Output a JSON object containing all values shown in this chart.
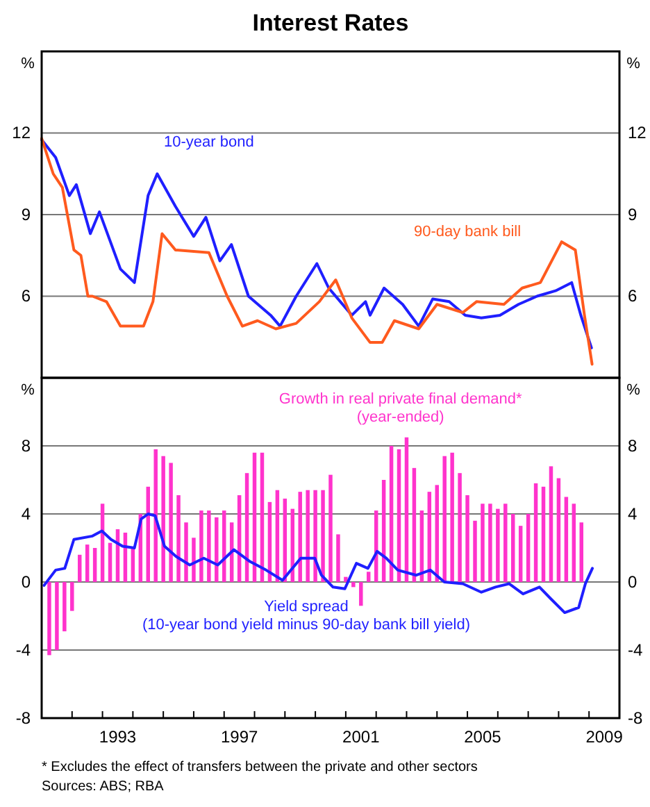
{
  "chart_data": [
    {
      "type": "line",
      "title": "Interest Rates",
      "ylabel": "%",
      "y2label": "%",
      "xlim": [
        1991,
        2010
      ],
      "ylim": [
        3,
        15
      ],
      "yticks": [
        6,
        9,
        12
      ],
      "y2lim": [
        3,
        15
      ],
      "y2ticks": [
        6,
        9,
        12
      ],
      "grid": "y",
      "tick_labels": "y",
      "series": [
        {
          "name": "10-year bond",
          "color": "#1f1fff",
          "x": [
            1991.0,
            1991.46,
            1991.91,
            1992.14,
            1992.6,
            1992.9,
            1993.59,
            1994.05,
            1994.5,
            1994.8,
            1995.4,
            1996.0,
            1996.4,
            1996.86,
            1997.24,
            1997.8,
            1998.53,
            1998.84,
            1999.37,
            2000.05,
            2000.44,
            2001.2,
            2001.65,
            2001.8,
            2002.26,
            2002.87,
            2003.4,
            2003.86,
            2004.4,
            2004.93,
            2005.46,
            2006.07,
            2006.68,
            2007.29,
            2007.9,
            2008.43,
            2008.73,
            2009.08
          ],
          "values": [
            11.75,
            11.1,
            9.7,
            10.1,
            8.3,
            9.1,
            7.0,
            6.5,
            9.7,
            10.5,
            9.3,
            8.2,
            8.9,
            7.3,
            7.9,
            6.0,
            5.3,
            4.9,
            6.0,
            7.2,
            6.3,
            5.3,
            5.8,
            5.3,
            6.3,
            5.7,
            4.9,
            5.9,
            5.8,
            5.3,
            5.2,
            5.3,
            5.7,
            6.0,
            6.2,
            6.5,
            5.3,
            4.1
          ]
        },
        {
          "name": "90-day bank bill",
          "color": "#ff5a1e",
          "x": [
            1991.0,
            1991.38,
            1991.68,
            1992.06,
            1992.29,
            1992.52,
            1992.67,
            1993.13,
            1993.59,
            1994.35,
            1994.66,
            1994.96,
            1995.4,
            1996.5,
            1997.1,
            1997.6,
            1998.1,
            1998.7,
            1999.37,
            2000.13,
            2000.67,
            2001.2,
            2001.8,
            2002.2,
            2002.6,
            2003.4,
            2004.0,
            2004.85,
            2005.3,
            2006.2,
            2006.8,
            2007.4,
            2008.1,
            2008.55,
            2008.85,
            2009.1
          ],
          "values": [
            11.8,
            10.5,
            10.0,
            7.7,
            7.5,
            6.0,
            6.0,
            5.8,
            4.9,
            4.9,
            5.8,
            8.3,
            7.7,
            7.6,
            6.0,
            4.9,
            5.1,
            4.8,
            5.0,
            5.8,
            6.6,
            5.2,
            4.3,
            4.3,
            5.1,
            4.8,
            5.7,
            5.4,
            5.8,
            5.7,
            6.3,
            6.5,
            8.0,
            7.7,
            5.3,
            3.5
          ]
        }
      ]
    },
    {
      "type": "bar",
      "ylabel": "%",
      "y2label": "%",
      "xlim": [
        1991,
        2010
      ],
      "ylim": [
        -8,
        12
      ],
      "yticks": [
        -8,
        -4,
        0,
        4,
        8
      ],
      "y2lim": [
        -8,
        12
      ],
      "y2ticks": [
        -8,
        -4,
        0,
        4,
        8
      ],
      "grid": "y",
      "xticks": [
        {
          "value": 1992,
          "label": null
        },
        {
          "value": 1993,
          "label": null
        },
        {
          "value": 1993.5,
          "label": "1993"
        },
        {
          "value": 1994,
          "label": null
        },
        {
          "value": 1995,
          "label": null
        },
        {
          "value": 1996,
          "label": null
        },
        {
          "value": 1997,
          "label": null
        },
        {
          "value": 1997.5,
          "label": "1997"
        },
        {
          "value": 1998,
          "label": null
        },
        {
          "value": 1999,
          "label": null
        },
        {
          "value": 2000,
          "label": null
        },
        {
          "value": 2001,
          "label": null
        },
        {
          "value": 2001.5,
          "label": "2001"
        },
        {
          "value": 2002,
          "label": null
        },
        {
          "value": 2003,
          "label": null
        },
        {
          "value": 2004,
          "label": null
        },
        {
          "value": 2005,
          "label": null
        },
        {
          "value": 2005.5,
          "label": "2005"
        },
        {
          "value": 2006,
          "label": null
        },
        {
          "value": 2007,
          "label": null
        },
        {
          "value": 2008,
          "label": null
        },
        {
          "value": 2009,
          "label": null
        },
        {
          "value": 2009.5,
          "label": "2009"
        }
      ],
      "annotations": [
        "*   Excludes the effect of transfers between the private and other sectors",
        "Sources: ABS; RBA"
      ],
      "series": [
        {
          "name": "Growth in real private final demand*\n(year-ended)",
          "color": "#ff33cc",
          "x": [
            1991.25,
            1991.5,
            1991.75,
            1992,
            1992.25,
            1992.5,
            1992.75,
            1993,
            1993.25,
            1993.5,
            1993.75,
            1994,
            1994.25,
            1994.5,
            1994.75,
            1995,
            1995.25,
            1995.5,
            1995.75,
            1996,
            1996.25,
            1996.5,
            1996.75,
            1997,
            1997.25,
            1997.5,
            1997.75,
            1998,
            1998.25,
            1998.5,
            1998.75,
            1999,
            1999.25,
            1999.5,
            1999.75,
            2000,
            2000.25,
            2000.5,
            2000.75,
            2001,
            2001.25,
            2001.5,
            2001.75,
            2002,
            2002.25,
            2002.5,
            2002.75,
            2003,
            2003.25,
            2003.5,
            2003.75,
            2004,
            2004.25,
            2004.5,
            2004.75,
            2005,
            2005.25,
            2005.5,
            2005.75,
            2006,
            2006.25,
            2006.5,
            2006.75,
            2007,
            2007.25,
            2007.5,
            2007.75,
            2008,
            2008.25,
            2008.5,
            2008.75
          ],
          "values": [
            -4.3,
            -4.0,
            -2.9,
            -1.7,
            1.6,
            2.2,
            2.0,
            4.6,
            2.3,
            3.1,
            2.9,
            2.0,
            4.0,
            5.6,
            7.8,
            7.4,
            7.0,
            5.1,
            3.5,
            2.6,
            4.2,
            4.2,
            3.8,
            4.2,
            3.5,
            5.1,
            6.4,
            7.6,
            7.6,
            4.7,
            5.4,
            4.9,
            4.3,
            5.3,
            5.4,
            5.4,
            5.4,
            6.3,
            2.8,
            0.3,
            -0.3,
            -1.4,
            0.6,
            4.2,
            6.0,
            8.0,
            7.8,
            8.5,
            6.7,
            4.2,
            5.3,
            5.7,
            7.4,
            7.6,
            6.4,
            5.1,
            3.6,
            4.6,
            4.6,
            4.3,
            4.6,
            4.0,
            3.3,
            4.0,
            5.8,
            5.6,
            6.8,
            6.1,
            5.0,
            4.6,
            3.5
          ]
        },
        {
          "type": "line",
          "name": "Yield spread\n(10-year bond yield minus 90-day bank bill yield)",
          "color": "#1f1fff",
          "x": [
            1991.08,
            1991.46,
            1991.76,
            1992.06,
            1992.67,
            1992.98,
            1993.28,
            1993.66,
            1994.05,
            1994.27,
            1994.5,
            1994.73,
            1995.04,
            1995.42,
            1995.87,
            1996.33,
            1996.79,
            1997.32,
            1997.85,
            1998.38,
            1998.92,
            1999.52,
            1999.98,
            2000.2,
            2000.58,
            2000.97,
            2001.35,
            2001.73,
            2002.03,
            2002.33,
            2002.71,
            2003.32,
            2003.78,
            2004.24,
            2004.85,
            2005.46,
            2005.92,
            2006.37,
            2006.83,
            2007.37,
            2007.75,
            2008.2,
            2008.66,
            2008.88,
            2009.11
          ],
          "values": [
            -0.2,
            0.7,
            0.8,
            2.5,
            2.7,
            3.0,
            2.5,
            2.1,
            2.0,
            3.7,
            4.0,
            3.9,
            2.1,
            1.5,
            1.0,
            1.4,
            1.0,
            1.9,
            1.2,
            0.7,
            0.1,
            1.4,
            1.4,
            0.4,
            -0.3,
            -0.4,
            1.1,
            0.8,
            1.8,
            1.4,
            0.7,
            0.4,
            0.7,
            0.0,
            -0.1,
            -0.6,
            -0.3,
            -0.1,
            -0.7,
            -0.3,
            -1.0,
            -1.8,
            -1.5,
            -0.1,
            0.8
          ]
        }
      ]
    }
  ]
}
